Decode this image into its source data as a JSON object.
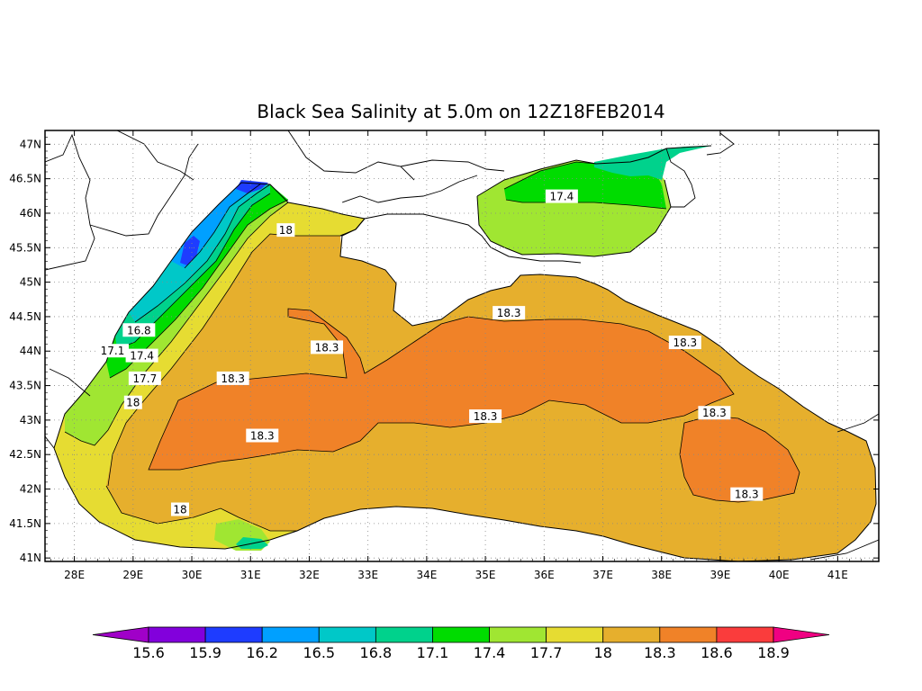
{
  "title": "Black Sea Salinity at 5.0m on 12Z18FEB2014",
  "map": {
    "lon_ticks": [
      "28E",
      "29E",
      "30E",
      "31E",
      "32E",
      "33E",
      "34E",
      "35E",
      "36E",
      "37E",
      "38E",
      "39E",
      "40E",
      "41E"
    ],
    "lat_ticks": [
      "47N",
      "46.5N",
      "46N",
      "45.5N",
      "45N",
      "44.5N",
      "44N",
      "43.5N",
      "43N",
      "42.5N",
      "42N",
      "41.5N",
      "41N"
    ],
    "lon_range": [
      27.5,
      41.7
    ],
    "lat_range": [
      40.95,
      47.2
    ],
    "grid": "dotted"
  },
  "colorbar": {
    "ticks": [
      "15.6",
      "15.9",
      "16.2",
      "16.5",
      "16.8",
      "17.1",
      "17.4",
      "17.7",
      "18",
      "18.3",
      "18.6",
      "18.9"
    ],
    "colors": [
      "#a000c8",
      "#8200dc",
      "#1e3cff",
      "#00a0ff",
      "#00c8c8",
      "#00d28c",
      "#00dc00",
      "#a0e632",
      "#e6dc32",
      "#e6af2d",
      "#f08228",
      "#fa3c3c",
      "#f00082"
    ]
  },
  "contour_labels": [
    {
      "text": "18",
      "lon": 31.6,
      "lat": 45.75
    },
    {
      "text": "16.8",
      "lon": 29.1,
      "lat": 44.3
    },
    {
      "text": "17.1",
      "lon": 28.65,
      "lat": 44.0
    },
    {
      "text": "17.4",
      "lon": 29.15,
      "lat": 43.93
    },
    {
      "text": "17.7",
      "lon": 29.2,
      "lat": 43.6
    },
    {
      "text": "18",
      "lon": 29.0,
      "lat": 43.25
    },
    {
      "text": "18.3",
      "lon": 30.7,
      "lat": 43.6
    },
    {
      "text": "18.3",
      "lon": 32.3,
      "lat": 44.05
    },
    {
      "text": "18.3",
      "lon": 35.4,
      "lat": 44.55
    },
    {
      "text": "18.3",
      "lon": 38.4,
      "lat": 44.12
    },
    {
      "text": "18.3",
      "lon": 35.0,
      "lat": 43.05
    },
    {
      "text": "18.3",
      "lon": 38.9,
      "lat": 43.1
    },
    {
      "text": "18.3",
      "lon": 31.2,
      "lat": 42.77
    },
    {
      "text": "18.3",
      "lon": 39.45,
      "lat": 41.92
    },
    {
      "text": "18",
      "lon": 29.8,
      "lat": 41.7
    },
    {
      "text": "17.4",
      "lon": 36.3,
      "lat": 46.24
    }
  ]
}
